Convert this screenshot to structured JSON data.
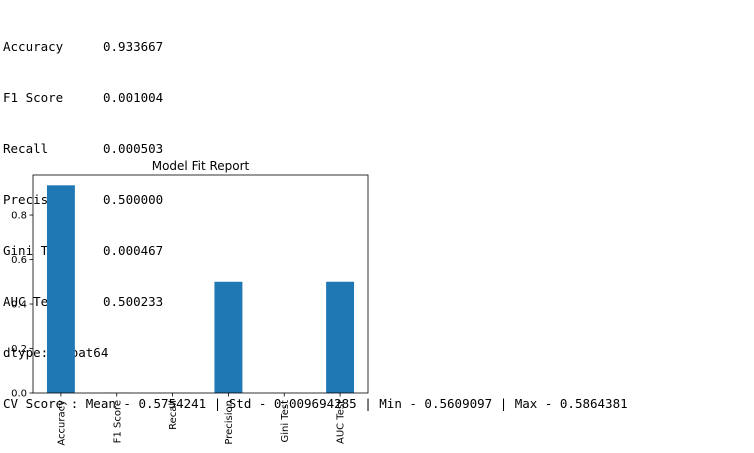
{
  "console": {
    "metrics": [
      {
        "name": "Accuracy",
        "value": "0.933667"
      },
      {
        "name": "F1 Score",
        "value": "0.001004"
      },
      {
        "name": "Recall",
        "value": "0.000503"
      },
      {
        "name": "Precision",
        "value": "0.500000"
      },
      {
        "name": "Gini Test",
        "value": "0.000467"
      },
      {
        "name": "AUC Test",
        "value": "0.500233"
      }
    ],
    "dtype_line": "dtype: float64",
    "cv_line": "CV Score : Mean - 0.5754241 | Std - 0.009694285 | Min - 0.5609097 | Max - 0.5864381"
  },
  "chart_data": {
    "type": "bar",
    "title": "Model Fit Report",
    "categories": [
      "Accuracy",
      "F1 Score",
      "Recall",
      "Precision",
      "Gini Test",
      "AUC Test"
    ],
    "values": [
      0.933667,
      0.001004,
      0.000503,
      0.5,
      0.000467,
      0.500233
    ],
    "ylim": [
      0,
      0.98
    ],
    "yticks": [
      0.0,
      0.2,
      0.4,
      0.6,
      0.8
    ],
    "ytick_labels": [
      "0.0",
      "0.2",
      "0.4",
      "0.6",
      "0.8"
    ],
    "xlabel": "",
    "ylabel": "",
    "bar_color": "#1f77b4",
    "grid": false,
    "legend": false
  }
}
